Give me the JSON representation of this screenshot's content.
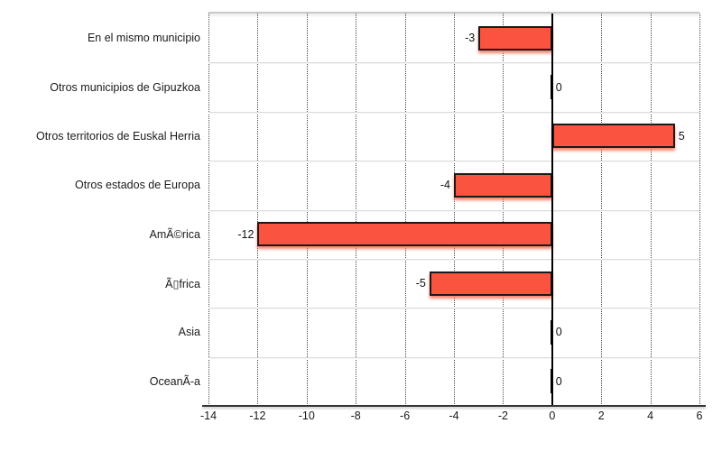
{
  "chart_data": {
    "type": "bar",
    "orientation": "horizontal",
    "title": "",
    "legend": "none",
    "grid": "vertical-dotted",
    "categories": [
      "En el mismo municipio",
      "Otros municipios de Gipuzkoa",
      "Otros territorios de Euskal Herria",
      "Otros estados de Europa",
      "AmÃ©rica",
      "Ã▯frica",
      "Asia",
      "OceanÃ-a"
    ],
    "values": [
      -3,
      0,
      5,
      -4,
      -12,
      -5,
      0,
      0
    ],
    "value_labels": [
      "-3",
      "0",
      "5",
      "-4",
      "-12",
      "-5",
      "0",
      "0"
    ],
    "xlim": [
      -14,
      6
    ],
    "xticks": [
      -14,
      -12,
      -10,
      -8,
      -6,
      -4,
      -2,
      0,
      2,
      4,
      6
    ],
    "colors": {
      "bar_fill": "#fa5440",
      "bar_border": "#1a1a1a",
      "bar_shadow": "rgba(249,120,95,0.9)",
      "zero_line": "#000000",
      "gridline": "#4a4a4a",
      "separator": "#dcdcdc",
      "axis_line": "#333333",
      "text": "#1a1a1a",
      "background": "#ffffff"
    }
  }
}
